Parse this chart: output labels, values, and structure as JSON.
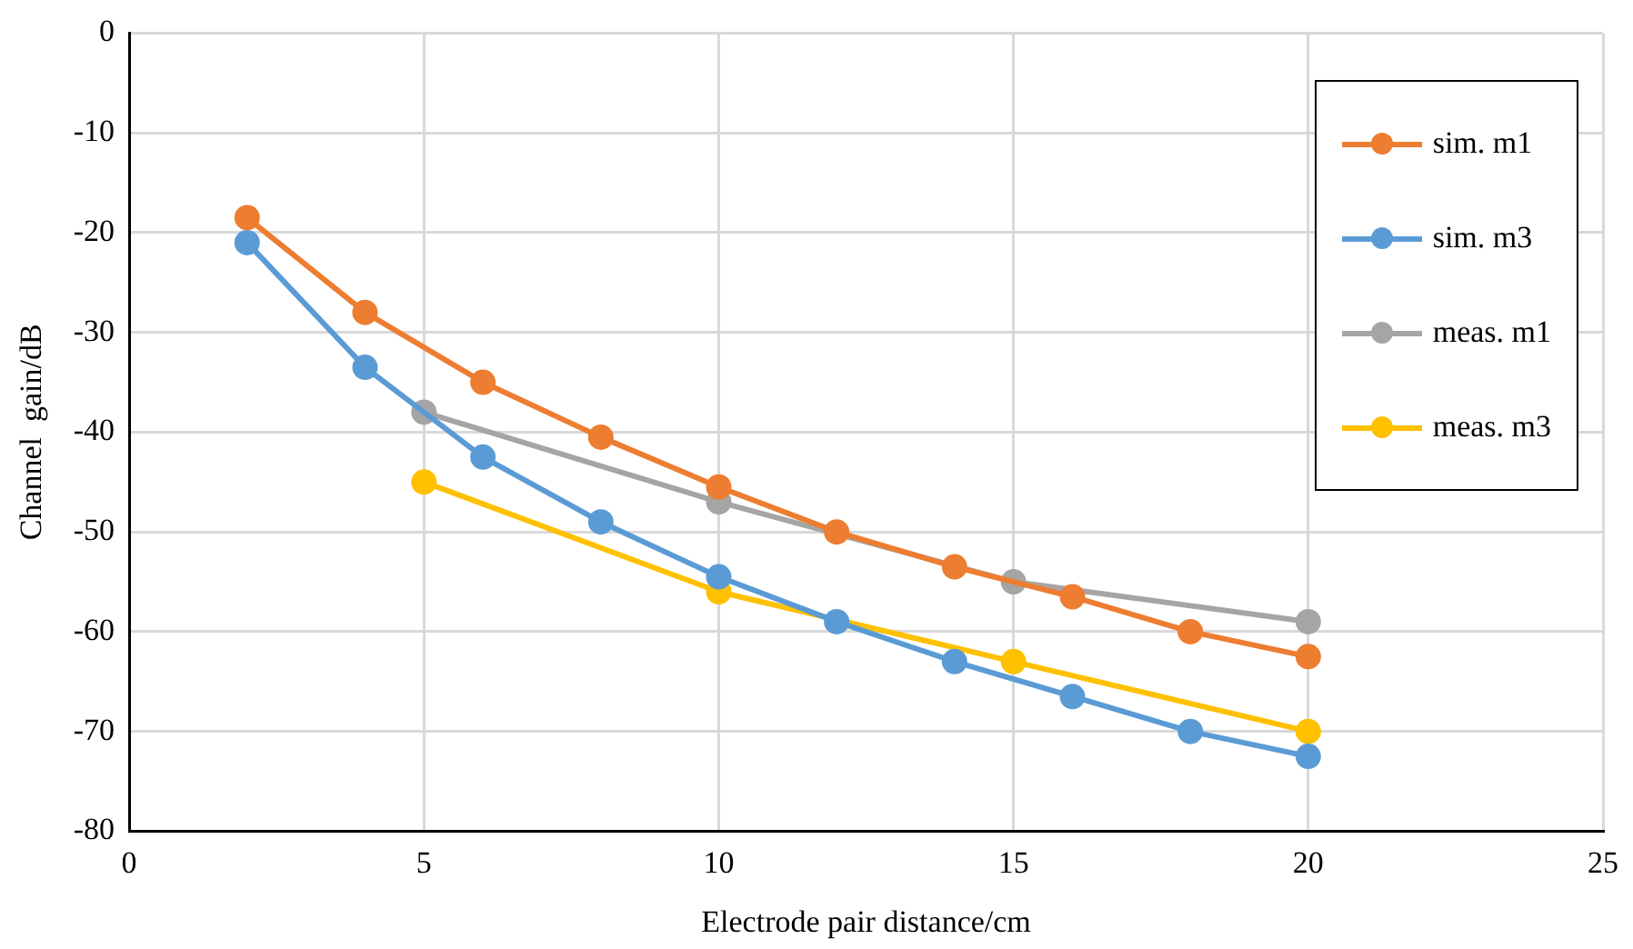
{
  "chart_data": {
    "type": "line",
    "xlabel": "Electrode pair distance/cm",
    "ylabel": "Channel  gain/dB",
    "xlim": [
      0,
      25
    ],
    "xticks": [
      0,
      5,
      10,
      15,
      20,
      25
    ],
    "ylim": [
      -80,
      0
    ],
    "yticks": [
      -80,
      -70,
      -60,
      -50,
      -40,
      -30,
      -20,
      -10,
      0
    ],
    "grid": true,
    "legend": "top right",
    "marker": "circle",
    "line_style": "solid",
    "series": [
      {
        "name": "sim. m1",
        "color": "#ed7d31",
        "x": [
          2,
          4,
          6,
          8,
          10,
          12,
          14,
          16,
          18,
          20
        ],
        "values": [
          -18.5,
          -28,
          -35,
          -40.5,
          -45.5,
          -50,
          -53.5,
          -56.5,
          -60,
          -62.5
        ]
      },
      {
        "name": "sim. m3",
        "color": "#5b9bd5",
        "x": [
          2,
          4,
          6,
          8,
          10,
          12,
          14,
          16,
          18,
          20
        ],
        "values": [
          -21,
          -33.5,
          -42.5,
          -49,
          -54.5,
          -59,
          -63,
          -66.5,
          -70,
          -72.5
        ]
      },
      {
        "name": "meas. m1",
        "color": "#a5a5a5",
        "x": [
          5,
          10,
          15,
          20
        ],
        "values": [
          -38,
          -47,
          -55,
          -59
        ]
      },
      {
        "name": "meas. m3",
        "color": "#ffc000",
        "x": [
          5,
          10,
          15,
          20
        ],
        "values": [
          -45,
          -56,
          -63,
          -70
        ]
      }
    ]
  }
}
